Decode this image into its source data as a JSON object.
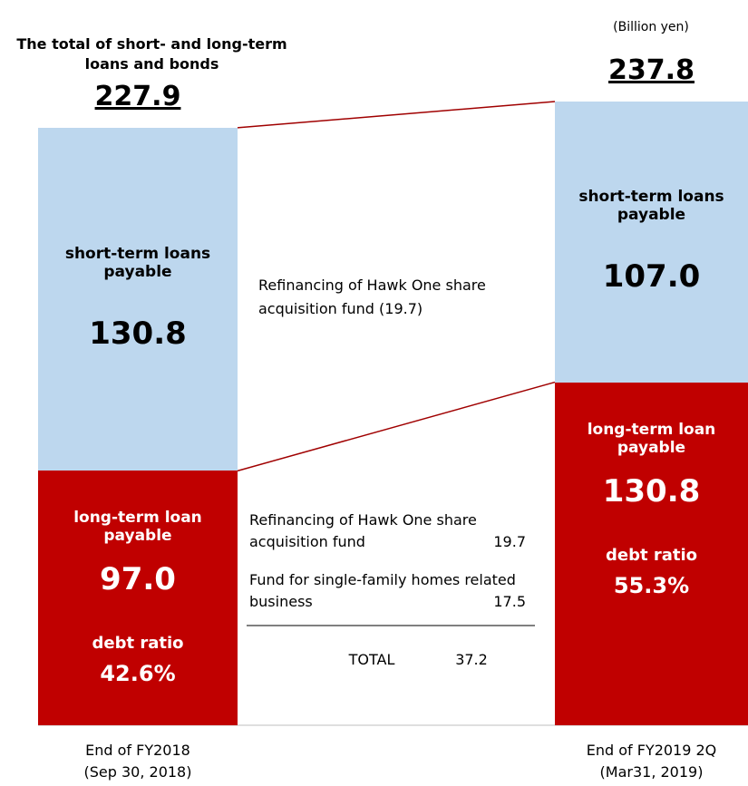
{
  "chart_data": {
    "type": "bar",
    "stacked": true,
    "title": "The total of short- and long-term loans and bonds",
    "unit_label": "(Billion yen)",
    "categories": [
      [
        "End of FY2018",
        "(Sep 30, 2018)"
      ],
      [
        "End of FY2019 2Q",
        "(Mar31, 2019)"
      ]
    ],
    "series": [
      {
        "name": "long-term loan payable",
        "color": "#c00000",
        "values": [
          97.0,
          130.8
        ],
        "value_labels": [
          "97.0",
          "130.8"
        ]
      },
      {
        "name": "short-term loans payable",
        "color": "#bdd7ee",
        "values": [
          130.8,
          107.0
        ],
        "value_labels": [
          "130.8",
          "107.0"
        ]
      }
    ],
    "totals": [
      227.9,
      237.8
    ],
    "debt_ratio": {
      "label": "debt ratio",
      "values": [
        42.6,
        55.3
      ],
      "value_labels": [
        "42.6%",
        "55.3%"
      ]
    },
    "ylim": [
      0,
      237.8
    ],
    "annotations": {
      "upper": "Refinancing of Hawk One share acquisition fund (19.7)",
      "table": {
        "rows": [
          [
            "Refinancing of Hawk One share acquisition fund",
            19.7
          ],
          [
            "Fund for single-family homes related business",
            17.5
          ]
        ],
        "total": [
          "TOTAL",
          37.2
        ]
      }
    }
  }
}
